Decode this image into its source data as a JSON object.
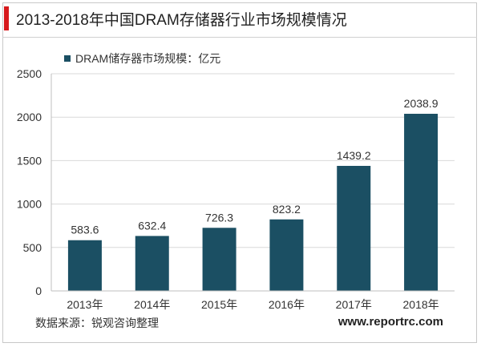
{
  "header": {
    "title": "2013-2018年中国DRAM存储器行业市场规模情况"
  },
  "footer": {
    "source": "数据来源：锐观咨询整理",
    "website": "www.reportrc.com"
  },
  "chart_data": {
    "type": "bar",
    "title": "2013-2018年中国DRAM存储器行业市场规模情况",
    "categories": [
      "2013年",
      "2014年",
      "2015年",
      "2016年",
      "2017年",
      "2018年"
    ],
    "series": [
      {
        "name": "DRAM储存器市场规模：亿元",
        "values": [
          583.6,
          632.4,
          726.3,
          823.2,
          1439.2,
          2038.9
        ],
        "labels": [
          "583.6",
          "632.4",
          "726.3",
          "823.2",
          "1439.2",
          "2038.9"
        ],
        "color": "#1b4f63"
      }
    ],
    "yticks": [
      0,
      500,
      1000,
      1500,
      2000,
      2500
    ],
    "ylim": [
      0,
      2500
    ],
    "grid": true,
    "legend": "top-left",
    "xlabel": "",
    "ylabel": ""
  }
}
